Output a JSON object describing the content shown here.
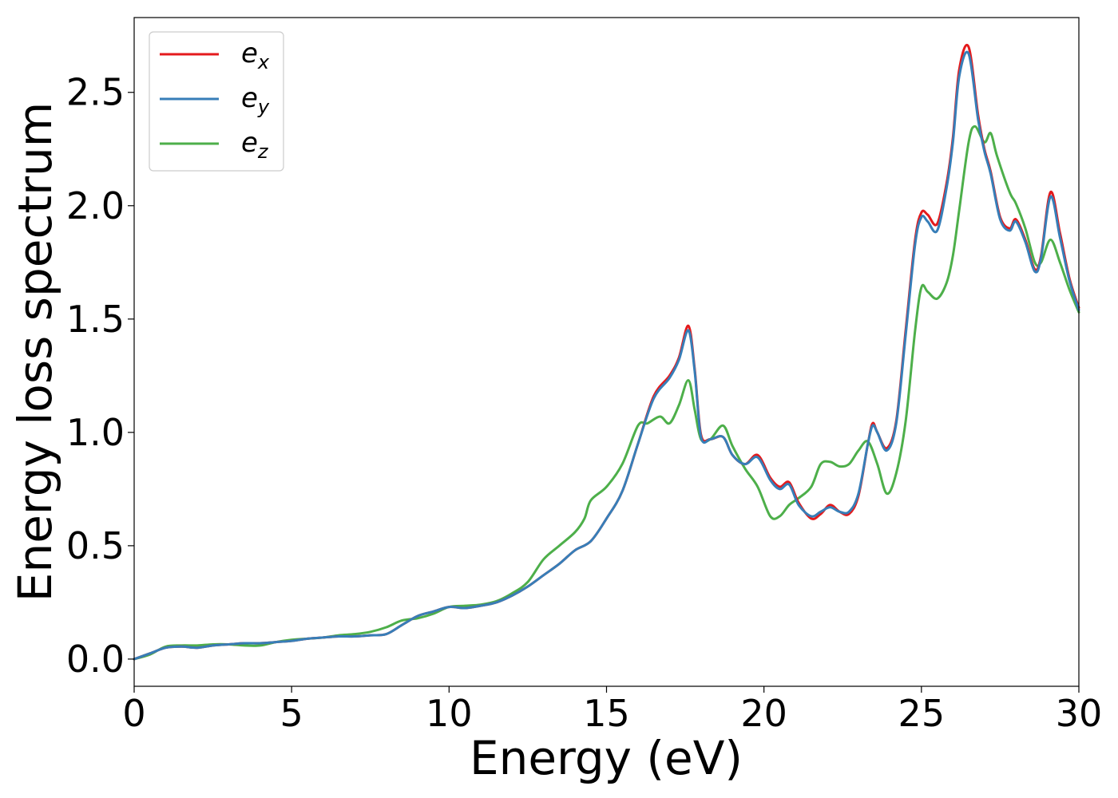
{
  "chart_data": {
    "type": "line",
    "title": "",
    "xlabel": "Energy (eV)",
    "ylabel": "Energy loss spectrum",
    "xlim": [
      0,
      30
    ],
    "ylim": [
      -0.12,
      2.83
    ],
    "xticks": [
      0,
      5,
      10,
      15,
      20,
      25,
      30
    ],
    "xtick_labels": [
      "0",
      "5",
      "10",
      "15",
      "20",
      "25",
      "30"
    ],
    "yticks": [
      0.0,
      0.5,
      1.0,
      1.5,
      2.0,
      2.5
    ],
    "ytick_labels": [
      "0.0",
      "0.5",
      "1.0",
      "1.5",
      "2.0",
      "2.5"
    ],
    "grid": false,
    "legend_position": "top-left",
    "series": [
      {
        "name": "e_x",
        "legend_base": "e",
        "legend_sub": "x",
        "color": "#e41a1c",
        "x": [
          0,
          0.5,
          1,
          1.5,
          2,
          2.5,
          3,
          3.5,
          4,
          4.5,
          5,
          5.5,
          6,
          6.5,
          7,
          7.5,
          8,
          8.5,
          9,
          9.5,
          10,
          10.5,
          11,
          11.5,
          12,
          12.5,
          13,
          13.5,
          14,
          14.5,
          15,
          15.5,
          16,
          16.5,
          17,
          17.3,
          17.6,
          17.8,
          18,
          18.3,
          18.7,
          19,
          19.4,
          19.8,
          20.2,
          20.5,
          20.8,
          21.1,
          21.5,
          21.8,
          22.1,
          22.4,
          22.7,
          23,
          23.3,
          23.45,
          23.6,
          23.9,
          24.2,
          24.5,
          24.8,
          25,
          25.2,
          25.5,
          25.8,
          26,
          26.2,
          26.5,
          26.8,
          27,
          27.2,
          27.5,
          27.8,
          28,
          28.3,
          28.6,
          28.8,
          29.1,
          29.4,
          29.7,
          30
        ],
        "y": [
          0,
          0.025,
          0.05,
          0.055,
          0.05,
          0.06,
          0.065,
          0.07,
          0.07,
          0.075,
          0.08,
          0.09,
          0.095,
          0.1,
          0.1,
          0.105,
          0.11,
          0.15,
          0.19,
          0.21,
          0.23,
          0.225,
          0.235,
          0.25,
          0.28,
          0.32,
          0.37,
          0.42,
          0.48,
          0.52,
          0.62,
          0.74,
          0.95,
          1.16,
          1.25,
          1.33,
          1.47,
          1.28,
          0.99,
          0.97,
          0.98,
          0.9,
          0.86,
          0.9,
          0.8,
          0.76,
          0.78,
          0.69,
          0.62,
          0.64,
          0.68,
          0.65,
          0.64,
          0.72,
          0.95,
          1.04,
          1.0,
          0.93,
          1.05,
          1.45,
          1.85,
          1.97,
          1.96,
          1.92,
          2.1,
          2.3,
          2.6,
          2.7,
          2.4,
          2.25,
          2.15,
          1.95,
          1.9,
          1.94,
          1.85,
          1.72,
          1.78,
          2.06,
          1.88,
          1.68,
          1.55
        ]
      },
      {
        "name": "e_y",
        "legend_base": "e",
        "legend_sub": "y",
        "color": "#377eb8",
        "x": [
          0,
          0.5,
          1,
          1.5,
          2,
          2.5,
          3,
          3.5,
          4,
          4.5,
          5,
          5.5,
          6,
          6.5,
          7,
          7.5,
          8,
          8.5,
          9,
          9.5,
          10,
          10.5,
          11,
          11.5,
          12,
          12.5,
          13,
          13.5,
          14,
          14.5,
          15,
          15.5,
          16,
          16.5,
          17,
          17.3,
          17.6,
          17.8,
          18,
          18.3,
          18.7,
          19,
          19.4,
          19.8,
          20.2,
          20.5,
          20.8,
          21.1,
          21.5,
          21.8,
          22.1,
          22.4,
          22.7,
          23,
          23.3,
          23.45,
          23.6,
          23.9,
          24.2,
          24.5,
          24.8,
          25,
          25.2,
          25.5,
          25.8,
          26,
          26.2,
          26.5,
          26.8,
          27,
          27.2,
          27.5,
          27.8,
          28,
          28.3,
          28.6,
          28.8,
          29.1,
          29.4,
          29.7,
          30
        ],
        "y": [
          0,
          0.025,
          0.05,
          0.055,
          0.05,
          0.06,
          0.065,
          0.07,
          0.07,
          0.075,
          0.08,
          0.09,
          0.095,
          0.1,
          0.1,
          0.105,
          0.11,
          0.15,
          0.19,
          0.21,
          0.23,
          0.225,
          0.235,
          0.25,
          0.28,
          0.32,
          0.37,
          0.42,
          0.48,
          0.52,
          0.62,
          0.74,
          0.95,
          1.15,
          1.24,
          1.32,
          1.45,
          1.27,
          0.98,
          0.97,
          0.98,
          0.9,
          0.86,
          0.89,
          0.79,
          0.75,
          0.77,
          0.68,
          0.63,
          0.65,
          0.67,
          0.65,
          0.65,
          0.73,
          0.95,
          1.03,
          1.0,
          0.92,
          1.04,
          1.43,
          1.83,
          1.95,
          1.93,
          1.89,
          2.08,
          2.28,
          2.57,
          2.67,
          2.38,
          2.24,
          2.14,
          1.94,
          1.89,
          1.93,
          1.84,
          1.71,
          1.77,
          2.04,
          1.86,
          1.67,
          1.54
        ]
      },
      {
        "name": "e_z",
        "legend_base": "e",
        "legend_sub": "z",
        "color": "#4daf4a",
        "x": [
          0,
          0.5,
          1,
          1.5,
          2,
          2.5,
          3,
          3.5,
          4,
          4.5,
          5,
          5.5,
          6,
          6.5,
          7,
          7.5,
          8,
          8.5,
          9,
          9.5,
          10,
          10.5,
          11,
          11.5,
          12,
          12.5,
          13,
          13.5,
          14,
          14.3,
          14.5,
          15,
          15.5,
          16,
          16.3,
          16.7,
          17,
          17.3,
          17.6,
          17.8,
          18,
          18.3,
          18.7,
          19,
          19.4,
          19.8,
          20.2,
          20.5,
          20.8,
          21.1,
          21.5,
          21.8,
          22.1,
          22.4,
          22.7,
          23,
          23.3,
          23.6,
          23.9,
          24.2,
          24.5,
          24.8,
          25,
          25.2,
          25.5,
          25.8,
          26,
          26.2,
          26.5,
          26.7,
          27,
          27.2,
          27.4,
          27.8,
          28,
          28.3,
          28.6,
          28.8,
          29.1,
          29.4,
          29.7,
          30
        ],
        "y": [
          0,
          0.02,
          0.055,
          0.06,
          0.06,
          0.065,
          0.065,
          0.06,
          0.06,
          0.075,
          0.085,
          0.09,
          0.095,
          0.105,
          0.11,
          0.12,
          0.14,
          0.17,
          0.18,
          0.2,
          0.23,
          0.235,
          0.24,
          0.255,
          0.29,
          0.34,
          0.44,
          0.5,
          0.56,
          0.62,
          0.7,
          0.76,
          0.86,
          1.03,
          1.04,
          1.07,
          1.04,
          1.12,
          1.23,
          1.1,
          0.97,
          0.97,
          1.03,
          0.94,
          0.84,
          0.76,
          0.63,
          0.63,
          0.68,
          0.71,
          0.76,
          0.86,
          0.87,
          0.85,
          0.86,
          0.92,
          0.96,
          0.86,
          0.73,
          0.82,
          1.05,
          1.45,
          1.64,
          1.62,
          1.59,
          1.66,
          1.78,
          1.98,
          2.28,
          2.35,
          2.28,
          2.32,
          2.22,
          2.06,
          2.01,
          1.9,
          1.75,
          1.75,
          1.85,
          1.75,
          1.63,
          1.53
        ]
      }
    ]
  }
}
